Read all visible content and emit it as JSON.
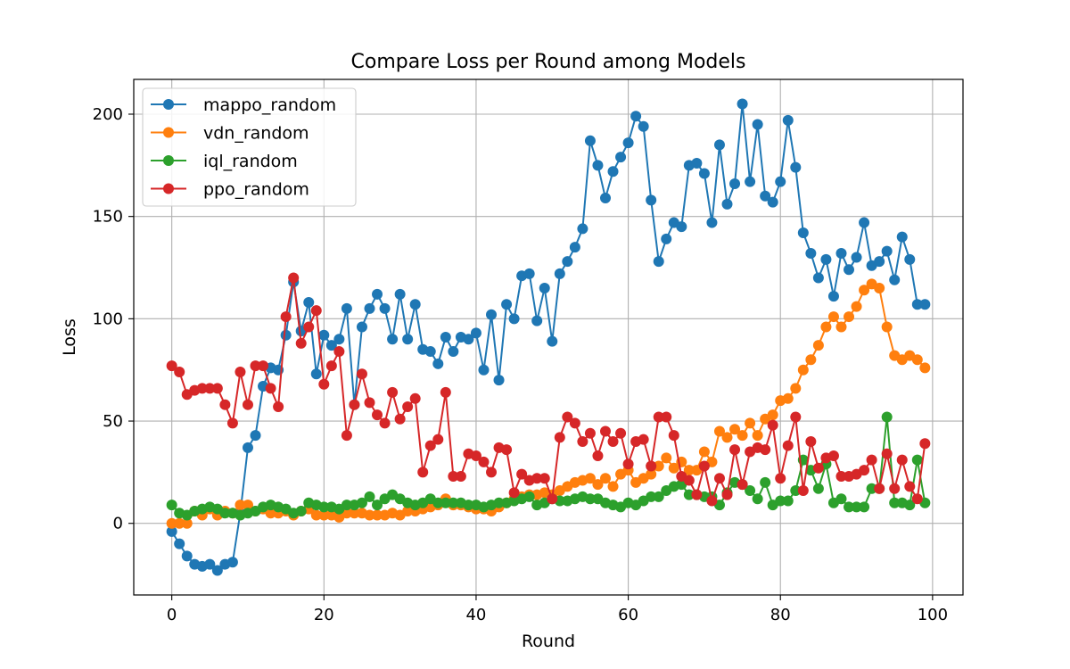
{
  "chart_data": {
    "type": "line",
    "title": "Compare Loss per Round among Models",
    "xlabel": "Round",
    "ylabel": "Loss",
    "xlim": [
      -5,
      104
    ],
    "ylim": [
      -35,
      217
    ],
    "xticks": [
      0,
      20,
      40,
      60,
      80,
      100
    ],
    "yticks": [
      0,
      50,
      100,
      150,
      200
    ],
    "grid": true,
    "legend": "top-left",
    "x": [
      0,
      1,
      2,
      3,
      4,
      5,
      6,
      7,
      8,
      9,
      10,
      11,
      12,
      13,
      14,
      15,
      16,
      17,
      18,
      19,
      20,
      21,
      22,
      23,
      24,
      25,
      26,
      27,
      28,
      29,
      30,
      31,
      32,
      33,
      34,
      35,
      36,
      37,
      38,
      39,
      40,
      41,
      42,
      43,
      44,
      45,
      46,
      47,
      48,
      49,
      50,
      51,
      52,
      53,
      54,
      55,
      56,
      57,
      58,
      59,
      60,
      61,
      62,
      63,
      64,
      65,
      66,
      67,
      68,
      69,
      70,
      71,
      72,
      73,
      74,
      75,
      76,
      77,
      78,
      79,
      80,
      81,
      82,
      83,
      84,
      85,
      86,
      87,
      88,
      89,
      90,
      91,
      92,
      93,
      94,
      95,
      96,
      97,
      98,
      99
    ],
    "series": [
      {
        "name": "mappo_random",
        "color": "#1f77b4",
        "values": [
          -4,
          -10,
          -16,
          -20,
          -21,
          -20,
          -23,
          -20,
          -19,
          5,
          37,
          43,
          67,
          76,
          75,
          92,
          118,
          94,
          108,
          73,
          92,
          87,
          90,
          105,
          58,
          96,
          105,
          112,
          105,
          90,
          112,
          90,
          107,
          85,
          84,
          78,
          91,
          84,
          91,
          90,
          93,
          75,
          102,
          70,
          107,
          100,
          121,
          122,
          99,
          115,
          89,
          122,
          128,
          135,
          144,
          187,
          175,
          159,
          172,
          179,
          186,
          199,
          194,
          158,
          128,
          139,
          147,
          145,
          175,
          176,
          171,
          147,
          185,
          156,
          166,
          205,
          167,
          195,
          160,
          157,
          167,
          197,
          174,
          142,
          132,
          120,
          129,
          111,
          132,
          124,
          130,
          147,
          126,
          128,
          133,
          119,
          140,
          129,
          107,
          107
        ]
      },
      {
        "name": "vdn_random",
        "color": "#ff7f0e",
        "values": [
          0,
          0,
          0,
          6,
          4,
          7,
          4,
          6,
          5,
          9,
          9,
          6,
          7,
          5,
          5,
          6,
          4,
          6,
          7,
          4,
          4,
          4,
          3,
          5,
          5,
          5,
          4,
          4,
          4,
          5,
          4,
          6,
          6,
          7,
          8,
          9,
          12,
          9,
          9,
          8,
          7,
          7,
          6,
          8,
          10,
          12,
          13,
          14,
          14,
          15,
          14,
          16,
          18,
          20,
          21,
          22,
          19,
          22,
          18,
          24,
          26,
          20,
          22,
          24,
          28,
          32,
          27,
          30,
          26,
          26,
          35,
          30,
          45,
          42,
          46,
          43,
          49,
          43,
          51,
          53,
          60,
          61,
          66,
          75,
          80,
          87,
          96,
          101,
          96,
          101,
          106,
          114,
          117,
          115,
          96,
          82,
          80,
          82,
          80,
          76
        ]
      },
      {
        "name": "iql_random",
        "color": "#2ca02c",
        "values": [
          9,
          5,
          4,
          6,
          7,
          8,
          7,
          5,
          5,
          4,
          5,
          6,
          8,
          9,
          8,
          7,
          5,
          6,
          10,
          9,
          8,
          8,
          7,
          9,
          9,
          10,
          13,
          9,
          12,
          14,
          12,
          10,
          9,
          10,
          12,
          10,
          10,
          10,
          10,
          9,
          9,
          8,
          9,
          10,
          10,
          11,
          12,
          13,
          9,
          10,
          12,
          11,
          11,
          12,
          13,
          12,
          12,
          10,
          9,
          8,
          10,
          9,
          11,
          13,
          13,
          16,
          18,
          19,
          14,
          14,
          13,
          13,
          9,
          15,
          20,
          19,
          16,
          12,
          20,
          9,
          11,
          11,
          16,
          31,
          26,
          17,
          29,
          10,
          12,
          8,
          8,
          8,
          17,
          17,
          52,
          10,
          10,
          9,
          31,
          10
        ]
      },
      {
        "name": "ppo_random",
        "color": "#d62728",
        "values": [
          77,
          74,
          63,
          65,
          66,
          66,
          66,
          58,
          49,
          74,
          58,
          77,
          77,
          66,
          57,
          101,
          120,
          88,
          96,
          104,
          68,
          77,
          84,
          43,
          58,
          73,
          59,
          53,
          49,
          64,
          51,
          57,
          61,
          25,
          38,
          41,
          64,
          23,
          23,
          34,
          33,
          30,
          25,
          37,
          36,
          15,
          24,
          21,
          22,
          22,
          12,
          42,
          52,
          49,
          40,
          44,
          33,
          45,
          40,
          44,
          29,
          40,
          41,
          28,
          52,
          52,
          43,
          23,
          21,
          14,
          28,
          11,
          22,
          14,
          36,
          19,
          35,
          37,
          36,
          48,
          22,
          38,
          52,
          16,
          40,
          27,
          32,
          33,
          23,
          23,
          24,
          26,
          31,
          17,
          34,
          17,
          31,
          18,
          12,
          39
        ]
      }
    ]
  }
}
